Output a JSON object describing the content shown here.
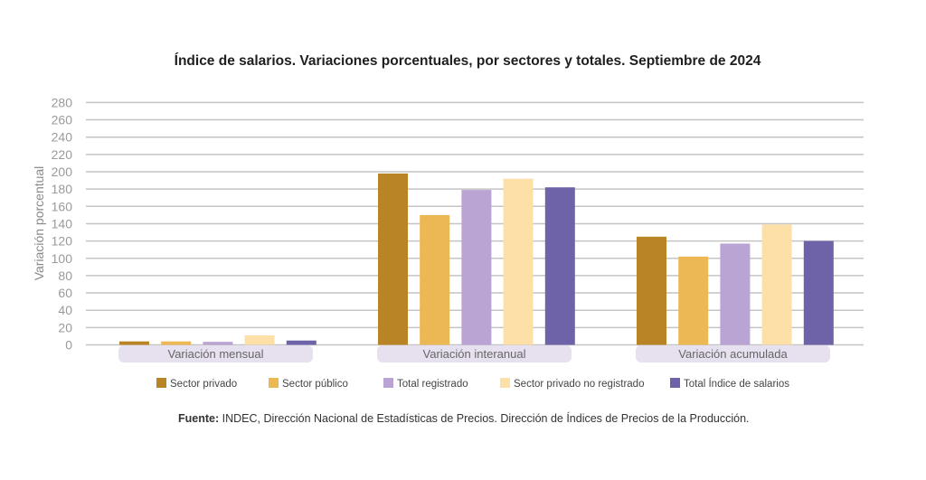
{
  "chart_data": {
    "type": "bar",
    "title": "Índice de salarios. Variaciones porcentuales, por sectores y totales. Septiembre de 2024",
    "xlabel": "",
    "ylabel": "Variación porcentual",
    "ylim": [
      0,
      280
    ],
    "yticks": [
      0,
      20,
      40,
      60,
      80,
      100,
      120,
      140,
      160,
      180,
      200,
      220,
      240,
      260,
      280
    ],
    "grid": true,
    "legend_position": "bottom",
    "categories": [
      "Variación mensual",
      "Variación interanual",
      "Variación acumulada"
    ],
    "series": [
      {
        "name": "Sector privado",
        "color": "#b88425",
        "values": [
          4,
          198,
          125
        ]
      },
      {
        "name": "Sector público",
        "color": "#ecb853",
        "values": [
          4,
          150,
          102
        ]
      },
      {
        "name": "Total registrado",
        "color": "#baa4d3",
        "values": [
          3.5,
          179,
          117
        ]
      },
      {
        "name": "Sector privado no registrado",
        "color": "#fde0a8",
        "values": [
          11,
          192,
          139
        ]
      },
      {
        "name": "Total Índice de salarios",
        "color": "#6e62a8",
        "values": [
          5,
          182,
          120
        ]
      }
    ],
    "category_label_bg": "#e6e0ef"
  },
  "source": {
    "prefix": "Fuente:",
    "text": " INDEC, Dirección Nacional de Estadísticas de Precios. Dirección de Índices de Precios de la Producción."
  }
}
